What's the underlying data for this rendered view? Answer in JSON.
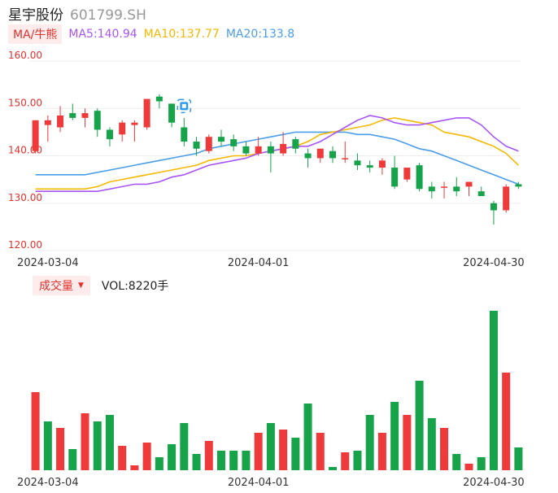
{
  "header": {
    "name": "星宇股份",
    "code": "601799.SH"
  },
  "ma_legend": {
    "button_label": "MA/牛熊",
    "ma5": "MA5:140.94",
    "ma10": "MA10:137.77",
    "ma20": "MA20:133.8"
  },
  "volume_legend": {
    "button_label": "成交量",
    "vol_text": "VOL:8220手"
  },
  "colors": {
    "up": "#ee3a3a",
    "down": "#16a34a",
    "ma5": "#a855f7",
    "ma10": "#f5b800",
    "ma20": "#4a9de8",
    "axis_label": "#e0312d"
  },
  "chart_data": [
    {
      "type": "candlestick",
      "y_ticks": [
        "160.00",
        "150.00",
        "140.00",
        "130.00",
        "120.00"
      ],
      "ylim": [
        120,
        160
      ],
      "x_tick_labels": [
        "2024-03-04",
        "2024-04-01",
        "2024-04-30"
      ],
      "candles": [
        {
          "o": 141.0,
          "h": 147.5,
          "l": 140.5,
          "c": 147.5
        },
        {
          "o": 146.5,
          "h": 148.5,
          "l": 143.0,
          "c": 147.5
        },
        {
          "o": 146.0,
          "h": 150.5,
          "l": 145.0,
          "c": 148.5
        },
        {
          "o": 149.0,
          "h": 151.0,
          "l": 147.5,
          "c": 148.0
        },
        {
          "o": 148.0,
          "h": 150.0,
          "l": 146.0,
          "c": 149.0
        },
        {
          "o": 149.5,
          "h": 150.0,
          "l": 144.0,
          "c": 145.5
        },
        {
          "o": 145.5,
          "h": 146.0,
          "l": 142.0,
          "c": 143.5
        },
        {
          "o": 144.5,
          "h": 147.5,
          "l": 143.0,
          "c": 147.0
        },
        {
          "o": 146.5,
          "h": 147.5,
          "l": 143.0,
          "c": 147.0
        },
        {
          "o": 146.0,
          "h": 152.0,
          "l": 145.5,
          "c": 152.0
        },
        {
          "o": 152.5,
          "h": 153.0,
          "l": 150.0,
          "c": 151.5
        },
        {
          "o": 151.0,
          "h": 151.0,
          "l": 146.0,
          "c": 147.0
        },
        {
          "o": 146.0,
          "h": 148.0,
          "l": 142.0,
          "c": 143.0
        },
        {
          "o": 143.0,
          "h": 144.0,
          "l": 140.0,
          "c": 141.5
        },
        {
          "o": 141.0,
          "h": 144.5,
          "l": 140.5,
          "c": 144.0
        },
        {
          "o": 144.0,
          "h": 145.5,
          "l": 142.0,
          "c": 143.0
        },
        {
          "o": 143.5,
          "h": 144.5,
          "l": 141.0,
          "c": 142.0
        },
        {
          "o": 142.0,
          "h": 143.0,
          "l": 140.0,
          "c": 140.5
        },
        {
          "o": 140.5,
          "h": 144.0,
          "l": 140.0,
          "c": 142.0
        },
        {
          "o": 142.0,
          "h": 143.0,
          "l": 136.5,
          "c": 140.5
        },
        {
          "o": 140.5,
          "h": 145.0,
          "l": 140.0,
          "c": 142.5
        },
        {
          "o": 143.5,
          "h": 144.0,
          "l": 140.5,
          "c": 141.5
        },
        {
          "o": 140.5,
          "h": 141.5,
          "l": 137.5,
          "c": 139.5
        },
        {
          "o": 139.5,
          "h": 141.5,
          "l": 138.5,
          "c": 141.5
        },
        {
          "o": 141.0,
          "h": 142.0,
          "l": 138.5,
          "c": 139.5
        },
        {
          "o": 139.5,
          "h": 143.0,
          "l": 138.5,
          "c": 139.5
        },
        {
          "o": 139.0,
          "h": 140.5,
          "l": 137.0,
          "c": 138.0
        },
        {
          "o": 138.0,
          "h": 139.0,
          "l": 136.5,
          "c": 137.5
        },
        {
          "o": 137.5,
          "h": 139.5,
          "l": 136.0,
          "c": 139.0
        },
        {
          "o": 137.5,
          "h": 140.0,
          "l": 133.0,
          "c": 133.5
        },
        {
          "o": 135.0,
          "h": 137.5,
          "l": 134.5,
          "c": 137.5
        },
        {
          "o": 138.0,
          "h": 138.5,
          "l": 132.5,
          "c": 133.0
        },
        {
          "o": 133.5,
          "h": 134.5,
          "l": 131.0,
          "c": 132.5
        },
        {
          "o": 133.5,
          "h": 134.5,
          "l": 131.0,
          "c": 133.5
        },
        {
          "o": 133.5,
          "h": 135.5,
          "l": 131.5,
          "c": 132.5
        },
        {
          "o": 133.5,
          "h": 134.5,
          "l": 131.5,
          "c": 134.5
        },
        {
          "o": 132.5,
          "h": 133.5,
          "l": 131.5,
          "c": 131.5
        },
        {
          "o": 130.0,
          "h": 130.5,
          "l": 125.5,
          "c": 128.5
        },
        {
          "o": 128.5,
          "h": 134.0,
          "l": 128.0,
          "c": 133.5
        },
        {
          "o": 134.0,
          "h": 134.5,
          "l": 133.0,
          "c": 133.5
        }
      ],
      "ma5": [
        null,
        null,
        null,
        null,
        132.5,
        132.5,
        133.0,
        133.5,
        134.0,
        134.0,
        134.5,
        135.5,
        136.0,
        137.0,
        138.0,
        138.5,
        139.0,
        139.5,
        140.5,
        141.0,
        141.5,
        142.0,
        142.0,
        143.0,
        144.5,
        146.0,
        147.5,
        148.5,
        148.0,
        147.0,
        146.5,
        146.5,
        147.0,
        147.5,
        148.0,
        148.0,
        146.5,
        144.0,
        142.0,
        141.0
      ],
      "ma10": [
        null,
        null,
        null,
        null,
        133.0,
        133.5,
        134.5,
        135.0,
        135.5,
        136.0,
        136.5,
        137.0,
        137.5,
        138.0,
        139.0,
        139.5,
        140.0,
        140.0,
        140.5,
        141.0,
        141.5,
        142.0,
        143.0,
        144.5,
        145.0,
        145.5,
        146.0,
        146.5,
        147.5,
        148.0,
        147.5,
        147.0,
        146.5,
        145.0,
        144.5,
        144.0,
        143.0,
        142.0,
        140.5,
        138.0
      ],
      "ma20": [
        null,
        null,
        null,
        null,
        136.0,
        136.5,
        137.0,
        137.5,
        138.0,
        138.5,
        139.0,
        139.5,
        140.0,
        140.5,
        141.5,
        142.0,
        142.5,
        143.0,
        143.5,
        144.0,
        144.5,
        145.0,
        145.0,
        145.0,
        145.0,
        145.0,
        144.5,
        144.5,
        144.0,
        143.5,
        142.5,
        141.5,
        141.0,
        140.0,
        139.0,
        138.0,
        137.0,
        136.0,
        135.0,
        134.0
      ],
      "dates": [
        "2024-03-04",
        "2024-04-01",
        "2024-04-30"
      ],
      "date_indices": [
        1,
        18,
        37
      ],
      "marker_index": 12
    },
    {
      "type": "bar",
      "ylim": [
        0,
        100
      ],
      "values": [
        48,
        30,
        26,
        13,
        35,
        30,
        34,
        15,
        3,
        17,
        8,
        16,
        29,
        10,
        18,
        12,
        12,
        12,
        23,
        29,
        25,
        20,
        41,
        23,
        2,
        11,
        12,
        34,
        23,
        42,
        34,
        55,
        32,
        26,
        10,
        4,
        8,
        98,
        60,
        14
      ],
      "up_flags": [
        1,
        0,
        1,
        0,
        1,
        0,
        0,
        1,
        1,
        1,
        0,
        0,
        0,
        0,
        1,
        0,
        0,
        0,
        1,
        0,
        1,
        0,
        0,
        1,
        0,
        1,
        0,
        0,
        1,
        0,
        1,
        0,
        0,
        1,
        0,
        1,
        0,
        0,
        1,
        0
      ]
    }
  ]
}
